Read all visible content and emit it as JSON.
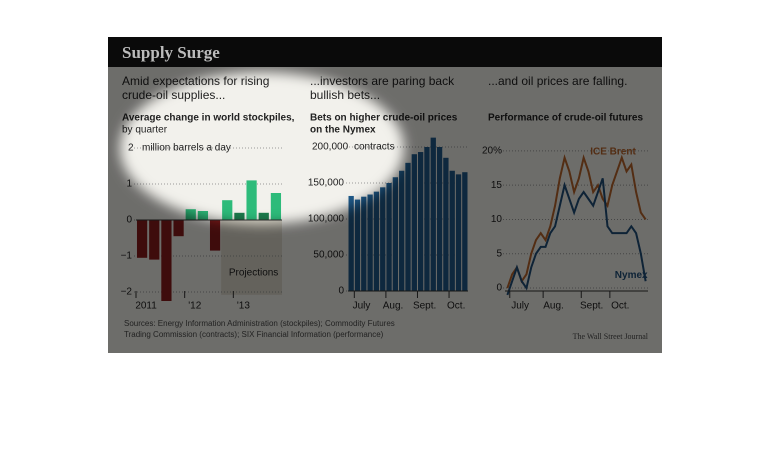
{
  "title": "Supply Surge",
  "source": [
    "Sources: Energy Information Administration (stockpiles); Commodity Futures",
    "Trading Commission (contracts); SIX Financial Information (performance)"
  ],
  "credit": "The Wall Street Journal",
  "chart_data": [
    {
      "type": "bar",
      "subtitle": [
        "Amid expectations for rising",
        "crude-oil supplies..."
      ],
      "title": "Average change in world stockpiles,",
      "note": "by quarter",
      "unit": "million barrels a day",
      "annotation": "Projections",
      "categories": [
        "2011",
        null,
        null,
        null,
        "'12",
        null,
        null,
        null,
        "'13",
        null,
        null,
        null
      ],
      "values": [
        -1.05,
        -1.1,
        -2.25,
        -0.45,
        0.3,
        0.25,
        -0.85,
        0.55,
        0.2,
        1.1,
        0.2,
        0.75
      ],
      "colors": [
        "#8b1c1c",
        "#8b1c1c",
        "#8b1c1c",
        "#8b1c1c",
        "#2dbb7a",
        "#2dbb7a",
        "#8b1c1c",
        "#2dbb7a",
        "#1c7a4c",
        "#2dbb7a",
        "#1c7a4c",
        "#2dbb7a"
      ],
      "ylim": [
        -2.3,
        2.3
      ],
      "yticks": [
        {
          "value": -2,
          "label": "−2"
        },
        {
          "value": -1,
          "label": "−1"
        },
        0,
        1,
        2
      ],
      "grid": true
    },
    {
      "type": "bar",
      "subtitle": [
        "...investors are paring back",
        "bullish bets..."
      ],
      "title": [
        "Bets on higher crude-oil prices",
        "on the Nymex"
      ],
      "unit": "contracts",
      "categories": [
        null,
        "July",
        null,
        null,
        null,
        null,
        "Aug.",
        null,
        null,
        null,
        null,
        "Sept.",
        null,
        null,
        null,
        null,
        "Oct.",
        null,
        null
      ],
      "values": [
        132000,
        127000,
        131000,
        134000,
        138000,
        144000,
        150000,
        158000,
        167000,
        178000,
        190000,
        193000,
        200000,
        213000,
        200000,
        185000,
        167000,
        162000,
        165000
      ],
      "color": "#1f5a8a",
      "ylim": [
        0,
        215000
      ],
      "yticks": [
        0,
        {
          "value": 50000,
          "label": "50,000"
        },
        {
          "value": 100000,
          "label": "100,000"
        },
        {
          "value": 150000,
          "label": "150,000"
        },
        {
          "value": 200000,
          "label": "200,000"
        }
      ],
      "grid": true
    },
    {
      "type": "line",
      "subtitle": [
        "...and oil prices are falling."
      ],
      "title": "Performance of crude-oil futures",
      "categories": [
        null,
        "July",
        null,
        null,
        null,
        null,
        null,
        null,
        "Aug.",
        null,
        null,
        null,
        null,
        null,
        null,
        null,
        "Sept.",
        null,
        null,
        null,
        null,
        null,
        "Oct.",
        null,
        null,
        null,
        null,
        null,
        null,
        null
      ],
      "series": [
        {
          "name": "ICE Brent",
          "color": "#b8652a",
          "values": [
            0,
            2,
            3,
            1,
            2,
            5,
            7,
            8,
            7,
            9,
            12,
            16,
            19,
            17,
            14,
            16,
            19,
            17,
            14,
            15,
            13,
            12,
            15,
            17,
            19,
            17,
            18,
            14,
            11,
            10
          ]
        },
        {
          "name": "Nymex",
          "color": "#1f4e79",
          "values": [
            -1,
            1,
            3,
            1,
            0,
            3,
            5,
            6,
            6,
            8,
            9,
            12,
            15,
            13,
            11,
            13,
            14,
            13,
            12,
            14,
            16,
            9,
            8,
            8,
            8,
            8,
            9,
            8,
            5,
            1
          ]
        }
      ],
      "ylim": [
        -1.5,
        21
      ],
      "yticks": [
        0,
        5,
        10,
        15,
        {
          "value": 20,
          "label": "20%"
        }
      ],
      "grid": true
    }
  ]
}
